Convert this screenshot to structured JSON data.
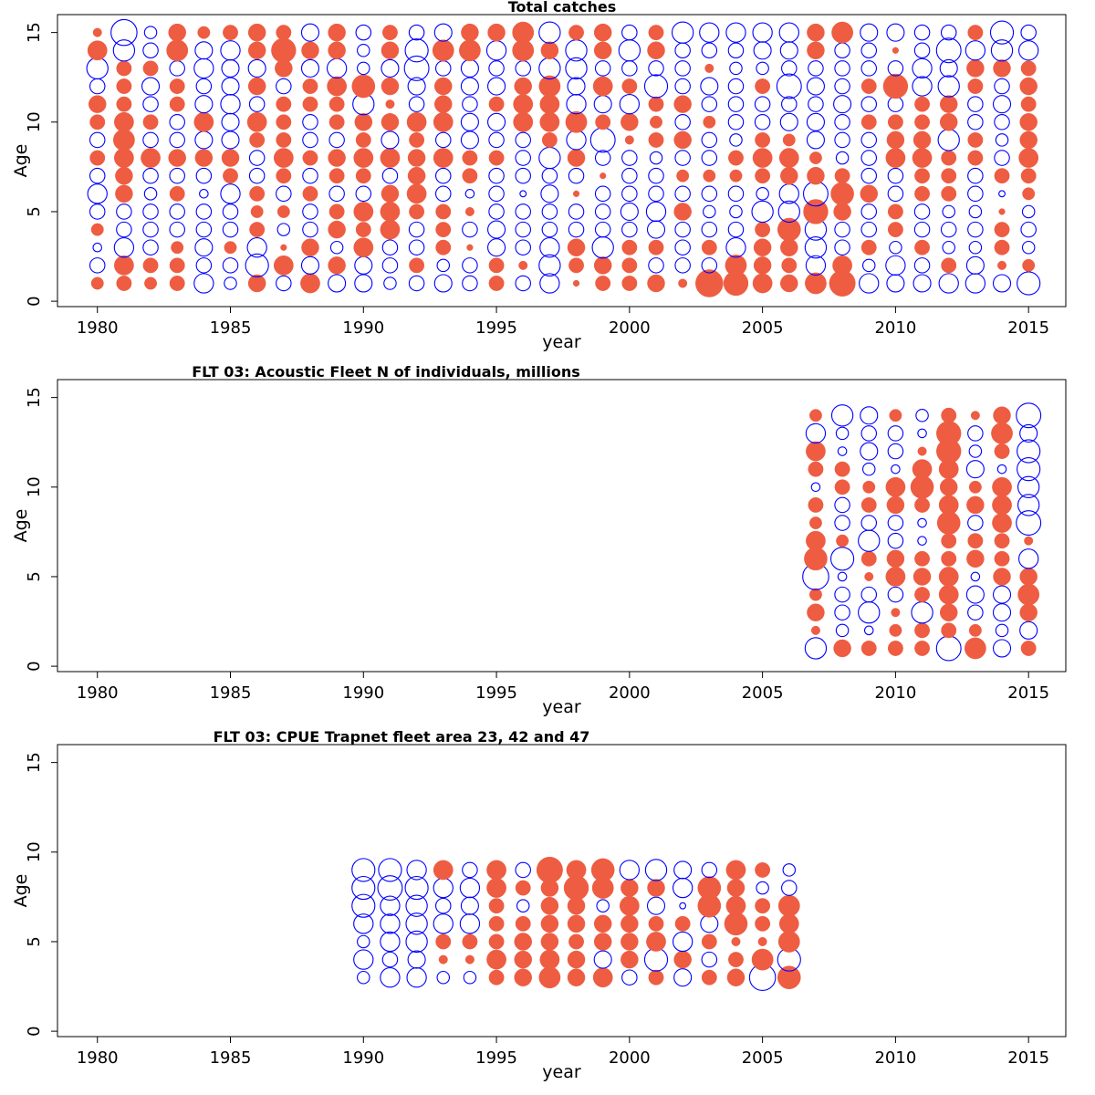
{
  "colors": {
    "positive": "#ee5c42",
    "negative": "#0000ff",
    "axis": "#000000",
    "background": "#ffffff"
  },
  "chart_data": [
    {
      "type": "bubble",
      "title": "Total catches",
      "xlabel": "year",
      "ylabel": "Age",
      "xlim": [
        1978.5,
        2016.4
      ],
      "ylim": [
        -0.3,
        16
      ],
      "x_ticks": [
        1980,
        1985,
        1990,
        1995,
        2000,
        2005,
        2010,
        2015
      ],
      "y_ticks": [
        0,
        5,
        10,
        15
      ],
      "encoding": "size = magnitude of residual (0-1 scale), filled red = positive, open blue = negative",
      "years": [
        1980,
        1981,
        1982,
        1983,
        1984,
        1985,
        1986,
        1987,
        1988,
        1989,
        1990,
        1991,
        1992,
        1993,
        1994,
        1995,
        1996,
        1997,
        1998,
        1999,
        2000,
        2001,
        2002,
        2003,
        2004,
        2005,
        2006,
        2007,
        2008,
        2009,
        2010,
        2011,
        2012,
        2013,
        2014,
        2015
      ],
      "ages": [
        1,
        2,
        3,
        4,
        5,
        6,
        7,
        8,
        9,
        10,
        11,
        12,
        13,
        14,
        15
      ],
      "residuals": [
        [
          0.2,
          0.3,
          0.2,
          0.3,
          -0.5,
          -0.2,
          0.4,
          -0.3,
          0.5,
          -0.4,
          -0.4,
          -0.2,
          -0.3,
          -0.4,
          -0.3,
          0.3,
          -0.3,
          -0.5,
          0.05,
          0.3,
          0.3,
          0.4,
          0.1,
          1.0,
          0.8,
          0.5,
          0.4,
          0.6,
          0.9,
          -0.5,
          -0.4,
          -0.4,
          -0.5,
          -0.5,
          -0.4,
          -0.7
        ],
        [
          -0.3,
          0.5,
          0.3,
          0.3,
          -0.3,
          -0.3,
          -0.7,
          0.5,
          -0.4,
          0.4,
          -0.4,
          -0.3,
          0.3,
          -0.2,
          -0.3,
          0.3,
          0.1,
          -0.6,
          0.3,
          0.4,
          0.3,
          -0.3,
          -0.3,
          -0.3,
          0.6,
          0.4,
          0.3,
          -0.5,
          0.5,
          -0.2,
          -0.5,
          -0.3,
          0.3,
          -0.4,
          0.1,
          0.2
        ],
        [
          -0.1,
          -0.5,
          -0.3,
          0.2,
          -0.4,
          0.2,
          -0.5,
          0.05,
          0.4,
          -0.2,
          0.5,
          -0.3,
          -0.3,
          0.3,
          0.05,
          -0.4,
          -0.3,
          -0.5,
          0.4,
          -0.6,
          0.3,
          0.3,
          -0.3,
          0.3,
          -0.5,
          0.4,
          0.4,
          -0.6,
          -0.3,
          0.3,
          -0.2,
          0.3,
          -0.2,
          -0.2,
          0.3,
          -0.2
        ],
        [
          0.2,
          -0.3,
          -0.3,
          -0.3,
          -0.3,
          -0.3,
          0.3,
          -0.2,
          -0.3,
          0.4,
          0.3,
          0.5,
          -0.3,
          0.3,
          -0.3,
          -0.4,
          -0.3,
          -0.3,
          -0.3,
          -0.3,
          -0.3,
          -0.4,
          -0.3,
          -0.3,
          -0.3,
          0.3,
          0.7,
          -0.6,
          -0.3,
          -0.3,
          0.3,
          -0.3,
          -0.3,
          -0.3,
          0.3,
          -0.3
        ],
        [
          -0.3,
          -0.3,
          -0.3,
          -0.3,
          -0.3,
          -0.3,
          0.2,
          0.2,
          -0.3,
          0.3,
          0.5,
          0.5,
          0.3,
          0.3,
          0.1,
          -0.3,
          -0.3,
          -0.3,
          -0.3,
          -0.3,
          -0.4,
          -0.5,
          0.4,
          -0.2,
          -0.2,
          -0.6,
          -0.6,
          0.8,
          0.4,
          -0.3,
          0.3,
          -0.3,
          -0.2,
          -0.2,
          0.05,
          -0.2
        ],
        [
          -0.5,
          0.4,
          -0.2,
          0.3,
          -0.1,
          -0.5,
          0.3,
          -0.3,
          0.3,
          -0.3,
          -0.3,
          0.4,
          0.5,
          -0.3,
          -0.1,
          -0.3,
          -0.05,
          -0.4,
          0.05,
          -0.3,
          -0.3,
          -0.3,
          -0.3,
          -0.3,
          -0.3,
          -0.2,
          -0.5,
          -0.8,
          0.7,
          0.4,
          -0.3,
          0.3,
          0.3,
          -0.3,
          -0.05,
          0.2
        ],
        [
          -0.3,
          0.4,
          -0.3,
          -0.3,
          -0.3,
          0.3,
          -0.3,
          0.3,
          -0.3,
          0.3,
          0.3,
          -0.3,
          0.4,
          -0.3,
          0.3,
          -0.3,
          -0.3,
          -0.3,
          -0.3,
          0.05,
          -0.3,
          -0.3,
          0.2,
          0.2,
          0.2,
          0.3,
          0.4,
          0.4,
          0.3,
          -0.3,
          -0.3,
          0.3,
          0.3,
          -0.3,
          0.3,
          0.3
        ],
        [
          0.3,
          0.5,
          0.5,
          0.4,
          0.4,
          0.4,
          -0.3,
          0.5,
          0.3,
          0.4,
          0.5,
          0.5,
          0.4,
          0.5,
          0.3,
          0.3,
          -0.3,
          -0.6,
          0.4,
          -0.3,
          -0.3,
          -0.2,
          -0.3,
          -0.3,
          0.3,
          0.5,
          0.5,
          0.2,
          -0.2,
          -0.3,
          0.5,
          0.5,
          0.3,
          0.3,
          -0.3,
          0.5
        ],
        [
          -0.3,
          0.6,
          -0.3,
          -0.3,
          -0.4,
          -0.4,
          0.3,
          0.3,
          -0.3,
          -0.3,
          0.3,
          -0.4,
          0.3,
          -0.3,
          -0.4,
          -0.3,
          -0.3,
          0.3,
          -0.5,
          -0.8,
          0.1,
          0.3,
          0.4,
          -0.3,
          -0.2,
          0.3,
          0.2,
          -0.4,
          -0.3,
          -0.3,
          0.4,
          0.4,
          -0.6,
          0.3,
          -0.2,
          0.4
        ],
        [
          0.3,
          0.5,
          0.3,
          -0.3,
          0.5,
          -0.4,
          0.5,
          0.3,
          -0.3,
          0.3,
          0.4,
          0.4,
          0.5,
          0.5,
          -0.4,
          -0.4,
          0.5,
          0.5,
          0.6,
          0.3,
          0.4,
          0.2,
          -0.3,
          0.2,
          -0.3,
          -0.3,
          -0.4,
          -0.4,
          -0.3,
          0.3,
          0.3,
          0.3,
          0.4,
          -0.3,
          -0.3,
          0.4
        ],
        [
          0.4,
          0.3,
          -0.3,
          0.3,
          -0.4,
          -0.5,
          -0.3,
          0.3,
          0.3,
          0.3,
          -0.6,
          0.1,
          -0.3,
          0.4,
          -0.3,
          0.3,
          0.5,
          0.5,
          -0.5,
          -0.4,
          -0.5,
          0.3,
          0.4,
          -0.3,
          -0.3,
          -0.3,
          -0.3,
          -0.3,
          -0.4,
          -0.3,
          -0.3,
          0.3,
          0.4,
          -0.3,
          -0.4,
          0.3
        ],
        [
          -0.3,
          0.3,
          -0.4,
          0.3,
          -0.3,
          -0.4,
          0.4,
          -0.3,
          0.3,
          0.5,
          0.7,
          0.4,
          -0.4,
          0.4,
          -0.4,
          -0.4,
          0.4,
          0.6,
          -0.4,
          0.5,
          0.3,
          -0.7,
          -0.3,
          -0.4,
          -0.3,
          0.3,
          -0.8,
          -0.4,
          -0.3,
          0.3,
          0.8,
          -0.5,
          -0.6,
          0.3,
          -0.3,
          0.4
        ],
        [
          -0.6,
          0.3,
          0.3,
          -0.3,
          -0.5,
          -0.4,
          -0.4,
          0.4,
          -0.4,
          -0.5,
          -0.2,
          -0.4,
          -0.8,
          -0.3,
          -0.4,
          -0.3,
          -0.3,
          -0.6,
          -0.6,
          -0.3,
          -0.3,
          -0.3,
          -0.3,
          0.1,
          -0.2,
          -0.2,
          -0.3,
          -0.3,
          -0.3,
          -0.3,
          -0.3,
          -0.5,
          -0.4,
          0.4,
          0.4,
          0.3
        ],
        [
          0.5,
          -0.6,
          -0.3,
          0.6,
          -0.4,
          -0.5,
          0.4,
          0.8,
          0.4,
          0.4,
          -0.2,
          0.4,
          -0.7,
          0.6,
          0.6,
          -0.5,
          0.6,
          0.4,
          -0.6,
          0.4,
          -0.6,
          0.4,
          -0.3,
          -0.3,
          -0.3,
          -0.4,
          -0.4,
          0.4,
          -0.3,
          -0.3,
          0.05,
          -0.3,
          -0.8,
          -0.5,
          -0.6,
          -0.5
        ],
        [
          0.1,
          -0.9,
          -0.2,
          0.4,
          0.2,
          0.3,
          0.4,
          0.3,
          -0.4,
          0.4,
          -0.3,
          0.3,
          -0.3,
          -0.4,
          0.4,
          0.4,
          0.6,
          -0.6,
          0.3,
          0.4,
          -0.3,
          0.3,
          -0.6,
          -0.5,
          -0.5,
          -0.5,
          -0.5,
          0.4,
          0.6,
          -0.4,
          -0.4,
          -0.3,
          -0.3,
          0.3,
          -0.7,
          -0.3
        ]
      ]
    },
    {
      "type": "bubble",
      "title": "FLT 03: Acoustic Fleet   N of individuals, millions",
      "xlabel": "year",
      "ylabel": "Age",
      "xlim": [
        1978.5,
        2016.4
      ],
      "ylim": [
        -0.3,
        16
      ],
      "x_ticks": [
        1980,
        1985,
        1990,
        1995,
        2000,
        2005,
        2010,
        2015
      ],
      "y_ticks": [
        0,
        5,
        10,
        15
      ],
      "encoding": "size = magnitude of residual (0-1 scale), filled red = positive, open blue = negative",
      "years": [
        2007,
        2008,
        2009,
        2010,
        2011,
        2012,
        2013,
        2014,
        2015
      ],
      "ages": [
        1,
        2,
        3,
        4,
        5,
        6,
        7,
        8,
        9,
        10,
        11,
        12,
        13,
        14
      ],
      "residuals": [
        [
          -0.6,
          0.4,
          0.3,
          0.3,
          0.3,
          -0.8,
          0.6,
          -0.4,
          0.3
        ],
        [
          0.1,
          -0.2,
          -0.1,
          0.2,
          0.3,
          0.3,
          0.2,
          -0.2,
          -0.4
        ],
        [
          0.4,
          -0.3,
          -0.6,
          0.1,
          -0.6,
          0.4,
          -0.3,
          -0.4,
          0.4
        ],
        [
          0.2,
          -0.3,
          -0.3,
          -0.3,
          0.3,
          0.5,
          -0.4,
          -0.4,
          0.6
        ],
        [
          -0.9,
          -0.1,
          0.1,
          0.5,
          0.4,
          0.5,
          -0.1,
          0.4,
          0.4
        ],
        [
          0.7,
          -0.7,
          0.3,
          0.4,
          0.3,
          0.3,
          0.4,
          0.3,
          -0.5
        ],
        [
          0.5,
          0.2,
          -0.6,
          -0.3,
          -0.1,
          0.3,
          0.3,
          0.3,
          0.1
        ],
        [
          0.2,
          -0.3,
          -0.3,
          -0.3,
          -0.1,
          0.7,
          -0.3,
          0.5,
          -0.8
        ],
        [
          0.3,
          -0.3,
          0.3,
          0.4,
          0.3,
          0.5,
          0.4,
          0.5,
          -0.6
        ],
        [
          -0.1,
          0.3,
          0.2,
          0.5,
          0.7,
          0.4,
          0.2,
          0.5,
          -0.6
        ],
        [
          0.3,
          0.3,
          -0.2,
          -0.1,
          0.5,
          0.5,
          -0.4,
          -0.1,
          -0.7
        ],
        [
          0.5,
          -0.1,
          -0.4,
          -0.3,
          0.1,
          0.8,
          -0.2,
          0.3,
          -0.7
        ],
        [
          -0.5,
          -0.2,
          -0.3,
          -0.3,
          -0.1,
          0.8,
          -0.3,
          0.6,
          -0.4
        ],
        [
          0.2,
          -0.6,
          -0.4,
          0.2,
          -0.2,
          0.3,
          0.1,
          0.4,
          -0.8
        ]
      ]
    },
    {
      "type": "bubble",
      "title": "FLT 03: CPUE Trapnet fleet area 23, 42 and 47",
      "xlabel": "year",
      "ylabel": "Age",
      "xlim": [
        1978.5,
        2016.4
      ],
      "ylim": [
        -0.3,
        16
      ],
      "x_ticks": [
        1980,
        1985,
        1990,
        1995,
        2000,
        2005,
        2010,
        2015
      ],
      "y_ticks": [
        0,
        5,
        10,
        15
      ],
      "encoding": "size = magnitude of residual (0-1 scale), filled red = positive, open blue = negative",
      "years": [
        1990,
        1991,
        1992,
        1993,
        1994,
        1995,
        1996,
        1997,
        1998,
        1999,
        2000,
        2001,
        2002,
        2003,
        2004,
        2005,
        2006
      ],
      "ages": [
        3,
        4,
        5,
        6,
        7,
        8,
        9
      ],
      "residuals": [
        [
          -0.2,
          -0.5,
          -0.5,
          -0.2,
          -0.2,
          0.3,
          0.4,
          0.6,
          0.4,
          0.5,
          -0.3,
          0.3,
          -0.4,
          0.3,
          0.4,
          -0.9,
          0.7
        ],
        [
          -0.5,
          -0.3,
          -0.4,
          0.1,
          0.1,
          0.5,
          0.4,
          0.5,
          0.4,
          -0.4,
          0.4,
          -0.7,
          0.4,
          -0.3,
          0.3,
          0.6,
          -0.7
        ],
        [
          -0.2,
          -0.5,
          -0.6,
          0.3,
          0.3,
          0.3,
          0.4,
          0.4,
          0.3,
          0.4,
          0.4,
          0.5,
          -0.5,
          0.3,
          0.1,
          0.1,
          0.6
        ],
        [
          -0.5,
          -0.5,
          -0.6,
          -0.5,
          -0.5,
          0.3,
          0.3,
          0.4,
          0.4,
          0.4,
          0.4,
          0.3,
          0.3,
          -0.4,
          0.7,
          0.3,
          0.5
        ],
        [
          -0.7,
          -0.5,
          -0.6,
          -0.3,
          -0.4,
          0.3,
          -0.2,
          0.4,
          0.4,
          -0.2,
          0.5,
          -0.4,
          -0.05,
          0.7,
          0.5,
          0.3,
          0.6
        ],
        [
          -0.7,
          -0.8,
          -0.7,
          -0.5,
          -0.5,
          0.5,
          0.3,
          0.4,
          0.8,
          0.6,
          0.4,
          0.4,
          -0.5,
          0.7,
          0.4,
          -0.2,
          -0.3
        ],
        [
          -0.7,
          -0.7,
          -0.5,
          0.5,
          -0.3,
          0.5,
          -0.3,
          0.9,
          0.5,
          0.7,
          -0.5,
          -0.6,
          -0.4,
          -0.3,
          0.5,
          0.3,
          -0.2
        ]
      ]
    }
  ]
}
